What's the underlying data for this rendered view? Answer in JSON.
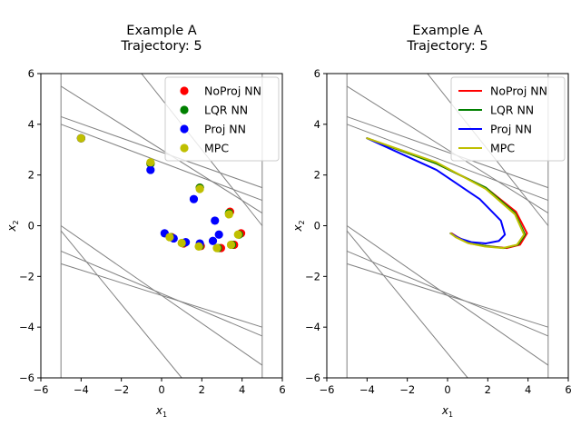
{
  "chart_data": [
    {
      "type": "scatter",
      "title": "Example A",
      "subtitle": "Trajectory: 5",
      "xlabel": "x1",
      "ylabel": "x2",
      "xlim": [
        -6,
        6
      ],
      "ylim": [
        -6,
        6
      ],
      "xticks": [
        -6,
        -4,
        -2,
        0,
        2,
        4,
        6
      ],
      "yticks": [
        -6,
        -4,
        -2,
        0,
        2,
        4,
        6
      ],
      "legend_position": "top-right",
      "series": [
        {
          "name": "NoProj NN",
          "color": "#ff0000",
          "x": [
            -4.0,
            -0.55,
            1.9,
            3.4,
            3.95,
            3.6,
            2.95,
            1.95,
            1.1,
            0.5
          ],
          "y": [
            3.45,
            2.45,
            1.5,
            0.55,
            -0.3,
            -0.75,
            -0.88,
            -0.8,
            -0.7,
            -0.45
          ]
        },
        {
          "name": "LQR NN",
          "color": "#008000",
          "x": [
            -4.0,
            -0.55,
            1.9,
            3.35,
            3.85,
            3.5,
            2.8,
            1.9,
            1.05,
            0.45
          ],
          "y": [
            3.45,
            2.45,
            1.5,
            0.5,
            -0.35,
            -0.75,
            -0.88,
            -0.8,
            -0.68,
            -0.45
          ]
        },
        {
          "name": "Proj NN",
          "color": "#0000ff",
          "x": [
            -4.0,
            -0.55,
            1.6,
            2.65,
            2.85,
            2.55,
            1.9,
            1.2,
            0.6,
            0.15
          ],
          "y": [
            3.45,
            2.2,
            1.05,
            0.2,
            -0.35,
            -0.6,
            -0.7,
            -0.65,
            -0.5,
            -0.3
          ]
        },
        {
          "name": "MPC",
          "color": "#bfbf00",
          "x": [
            -4.0,
            -0.55,
            1.9,
            3.35,
            3.8,
            3.45,
            2.75,
            1.85,
            1.0,
            0.4
          ],
          "y": [
            3.45,
            2.5,
            1.45,
            0.45,
            -0.35,
            -0.75,
            -0.88,
            -0.82,
            -0.68,
            -0.45
          ]
        }
      ]
    },
    {
      "type": "line",
      "title": "Example A",
      "subtitle": "Trajectory: 5",
      "xlabel": "x1",
      "ylabel": "x2",
      "xlim": [
        -6,
        6
      ],
      "ylim": [
        -6,
        6
      ],
      "xticks": [
        -6,
        -4,
        -2,
        0,
        2,
        4,
        6
      ],
      "yticks": [
        -6,
        -4,
        -2,
        0,
        2,
        4,
        6
      ],
      "legend_position": "top-right",
      "series": [
        {
          "name": "NoProj NN",
          "color": "#ff0000",
          "x": [
            -4.0,
            -0.55,
            1.9,
            3.4,
            3.95,
            3.6,
            2.95,
            1.95,
            1.1,
            0.5,
            0.2
          ],
          "y": [
            3.45,
            2.45,
            1.5,
            0.55,
            -0.3,
            -0.75,
            -0.88,
            -0.8,
            -0.7,
            -0.45,
            -0.3
          ]
        },
        {
          "name": "LQR NN",
          "color": "#008000",
          "x": [
            -4.0,
            -0.55,
            1.9,
            3.35,
            3.85,
            3.5,
            2.8,
            1.9,
            1.05,
            0.45,
            0.15
          ],
          "y": [
            3.45,
            2.45,
            1.5,
            0.5,
            -0.35,
            -0.75,
            -0.88,
            -0.8,
            -0.68,
            -0.45,
            -0.3
          ]
        },
        {
          "name": "Proj NN",
          "color": "#0000ff",
          "x": [
            -4.0,
            -0.55,
            1.6,
            2.65,
            2.85,
            2.55,
            1.9,
            1.2,
            0.6,
            0.15
          ],
          "y": [
            3.45,
            2.2,
            1.05,
            0.2,
            -0.35,
            -0.6,
            -0.7,
            -0.65,
            -0.5,
            -0.3
          ]
        },
        {
          "name": "MPC",
          "color": "#bfbf00",
          "x": [
            -4.0,
            -0.55,
            1.9,
            3.35,
            3.8,
            3.45,
            2.75,
            1.85,
            1.0,
            0.4,
            0.15
          ],
          "y": [
            3.45,
            2.5,
            1.45,
            0.45,
            -0.35,
            -0.75,
            -0.88,
            -0.82,
            -0.68,
            -0.45,
            -0.3
          ]
        }
      ]
    }
  ],
  "constraint_color": "#808080",
  "constraint_lines": [
    {
      "x": [
        -5,
        -5
      ],
      "y": [
        -6,
        6
      ]
    },
    {
      "x": [
        5,
        5
      ],
      "y": [
        -6,
        6
      ]
    },
    {
      "x": [
        -5,
        5
      ],
      "y": [
        5.5,
        0.5
      ]
    },
    {
      "x": [
        -5,
        5
      ],
      "y": [
        4.3,
        1.5
      ]
    },
    {
      "x": [
        -5,
        5
      ],
      "y": [
        4.0,
        1.0
      ]
    },
    {
      "x": [
        -1,
        5
      ],
      "y": [
        6.0,
        0.0
      ]
    },
    {
      "x": [
        -5,
        5
      ],
      "y": [
        0.0,
        -5.5
      ]
    },
    {
      "x": [
        -5,
        5
      ],
      "y": [
        -1.0,
        -4.35
      ]
    },
    {
      "x": [
        -5,
        5
      ],
      "y": [
        -1.5,
        -4.0
      ]
    },
    {
      "x": [
        -5,
        1
      ],
      "y": [
        -0.2,
        -6.0
      ]
    }
  ]
}
